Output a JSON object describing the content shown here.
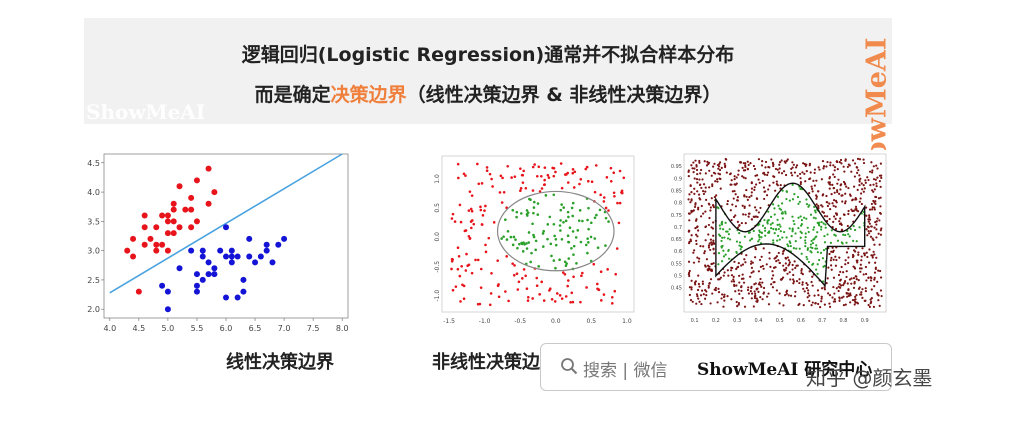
{
  "banner": {
    "line1": "逻辑回归(Logistic Regression)通常并不拟合样本分布",
    "line2_prefix": "而是确定",
    "line2_highlight": "决策边界",
    "line2_suffix": "（线性决策边界 & 非线性决策边界）"
  },
  "watermarks": {
    "left": "ShowMeAI",
    "vertical": "ShowMeAI"
  },
  "colors": {
    "highlight": "#f07f3c",
    "red_class": "#e8141b",
    "blue_class": "#1414d6",
    "green_class": "#2aa02a",
    "darkred_class": "#7a1414",
    "boundary_line": "#4aa3df"
  },
  "captions": {
    "linear": "线性决策边界",
    "nonlinear": "非线性决策边界"
  },
  "footer": {
    "search_icon": "search-icon",
    "search_text": "搜索 | 微信",
    "brand": "ShowMeAI 研究中心",
    "zhihu": "知乎 @颜玄墨"
  },
  "chart_data": [
    {
      "type": "scatter",
      "xlim": [
        3.9,
        8.1
      ],
      "ylim": [
        1.85,
        4.65
      ],
      "xticks": [
        "4.0",
        "4.5",
        "5.0",
        "5.5",
        "6.0",
        "6.5",
        "7.0",
        "7.5",
        "8.0"
      ],
      "yticks": [
        "2.0",
        "2.5",
        "3.0",
        "3.5",
        "4.0",
        "4.5"
      ],
      "grid": false,
      "series": [
        {
          "color": "#e8141b",
          "points": [
            [
              4.3,
              3.0
            ],
            [
              4.4,
              2.9
            ],
            [
              4.4,
              3.2
            ],
            [
              4.6,
              3.1
            ],
            [
              4.6,
              3.4
            ],
            [
              4.6,
              3.6
            ],
            [
              4.7,
              3.2
            ],
            [
              4.8,
              3.0
            ],
            [
              4.8,
              3.4
            ],
            [
              4.9,
              3.1
            ],
            [
              4.9,
              3.6
            ],
            [
              5.0,
              3.0
            ],
            [
              5.0,
              3.3
            ],
            [
              5.0,
              3.5
            ],
            [
              5.1,
              3.3
            ],
            [
              5.1,
              3.5
            ],
            [
              5.1,
              3.8
            ],
            [
              5.2,
              3.4
            ],
            [
              5.2,
              4.1
            ],
            [
              5.3,
              3.7
            ],
            [
              5.4,
              3.4
            ],
            [
              5.4,
              3.9
            ],
            [
              5.5,
              3.5
            ],
            [
              5.5,
              4.2
            ],
            [
              5.7,
              3.8
            ],
            [
              5.7,
              4.4
            ],
            [
              5.8,
              4.0
            ],
            [
              4.5,
              2.3
            ],
            [
              5.0,
              3.6
            ],
            [
              4.8,
              3.1
            ],
            [
              5.4,
              3.7
            ],
            [
              5.1,
              3.7
            ]
          ]
        },
        {
          "color": "#1414d6",
          "points": [
            [
              4.9,
              2.4
            ],
            [
              5.0,
              2.0
            ],
            [
              5.0,
              2.3
            ],
            [
              5.2,
              2.7
            ],
            [
              5.5,
              2.4
            ],
            [
              5.5,
              2.6
            ],
            [
              5.6,
              2.5
            ],
            [
              5.6,
              2.9
            ],
            [
              5.7,
              2.6
            ],
            [
              5.7,
              2.8
            ],
            [
              5.8,
              2.7
            ],
            [
              5.9,
              3.0
            ],
            [
              6.0,
              2.2
            ],
            [
              6.0,
              2.9
            ],
            [
              6.1,
              2.8
            ],
            [
              6.1,
              3.0
            ],
            [
              6.2,
              2.2
            ],
            [
              6.2,
              2.9
            ],
            [
              6.3,
              2.3
            ],
            [
              6.3,
              2.5
            ],
            [
              6.4,
              2.9
            ],
            [
              6.4,
              3.2
            ],
            [
              6.5,
              2.8
            ],
            [
              6.6,
              2.9
            ],
            [
              6.7,
              3.1
            ],
            [
              6.8,
              2.8
            ],
            [
              6.9,
              3.1
            ],
            [
              7.0,
              3.2
            ],
            [
              5.4,
              3.0
            ],
            [
              5.6,
              3.0
            ],
            [
              5.8,
              2.6
            ],
            [
              6.0,
              3.4
            ],
            [
              6.7,
              3.0
            ],
            [
              5.5,
              2.3
            ],
            [
              6.1,
              2.9
            ]
          ]
        }
      ],
      "boundary": [
        [
          4.0,
          2.28
        ],
        [
          8.0,
          4.65
        ]
      ]
    },
    {
      "type": "scatter",
      "xlim": [
        -1.6,
        1.1
      ],
      "ylim": [
        -1.35,
        1.35
      ],
      "xticks": [
        "-1.5",
        "-1.0",
        "-0.5",
        "0.0",
        "0.5",
        "1.0"
      ],
      "yticks": [
        "1.0",
        "0.5",
        "0.0",
        "-0.5",
        "-1.0"
      ],
      "grid": false,
      "boundary": "circle"
    },
    {
      "type": "scatter",
      "xlim": [
        0.05,
        1.0
      ],
      "ylim": [
        0.35,
        1.0
      ],
      "xticks": [
        "0.1",
        "0.2",
        "0.3",
        "0.4",
        "0.5",
        "0.6",
        "0.7",
        "0.8",
        "0.9"
      ],
      "yticks": [
        "0.95",
        "0.9",
        "0.85",
        "0.8",
        "0.75",
        "0.7",
        "0.65",
        "0.6",
        "0.55",
        "0.5",
        "0.45"
      ],
      "grid": false,
      "boundary": "irregular"
    }
  ]
}
